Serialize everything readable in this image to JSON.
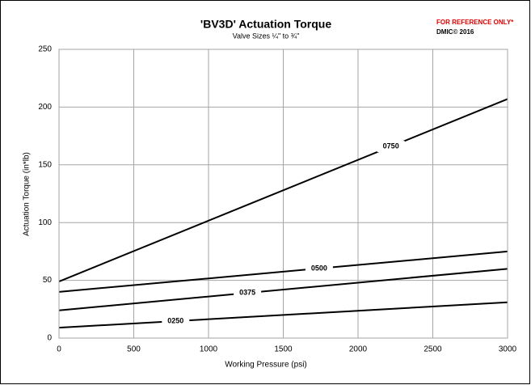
{
  "chart_data": {
    "type": "line",
    "title": "'BV3D' Actuation Torque",
    "subtitle": "Valve Sizes ¼\" to ¾\"",
    "annotations": [
      "FOR REFERENCE ONLY*",
      "DMIC© 2016"
    ],
    "x_label": "Working Pressure (psi)",
    "y_label": "Actuation Torque (in*lb)",
    "x": [
      0,
      3000
    ],
    "series": [
      {
        "name": "0250",
        "color": "#000000",
        "values": [
          9,
          31
        ]
      },
      {
        "name": "0375",
        "color": "#000000",
        "values": [
          24,
          60
        ]
      },
      {
        "name": "0500",
        "color": "#000000",
        "values": [
          40,
          75
        ]
      },
      {
        "name": "0750",
        "color": "#000000",
        "values": [
          49,
          207
        ]
      }
    ],
    "xlim": [
      0,
      3000
    ],
    "xticks": [
      0,
      500,
      1000,
      1500,
      2000,
      2500,
      3000
    ],
    "ylim": [
      0,
      250
    ],
    "yticks": [
      0,
      50,
      100,
      150,
      200,
      250
    ],
    "grid": true
  }
}
